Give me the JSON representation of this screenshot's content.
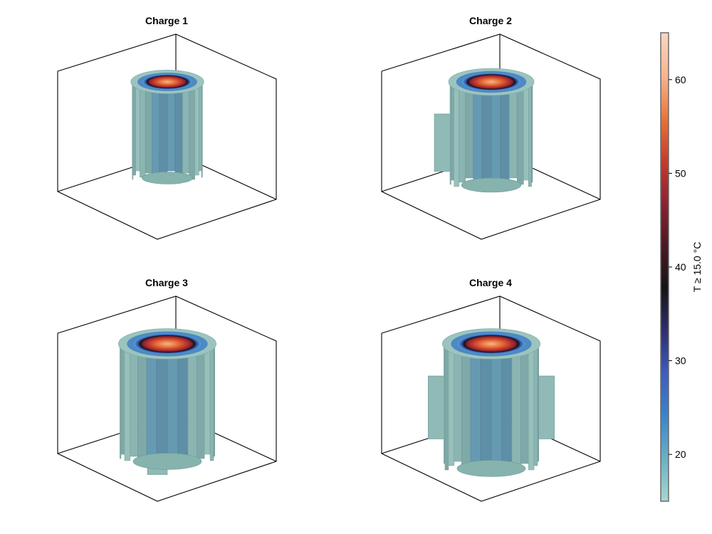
{
  "chart_data": {
    "type": "volume-3d",
    "panels": [
      {
        "title": "Charge 1",
        "column_scale": 0.85,
        "top_y": 115,
        "bottom_y": 252,
        "outcrops": []
      },
      {
        "title": "Charge 2",
        "column_scale": 1.0,
        "top_y": 115,
        "bottom_y": 262,
        "outcrops": [
          [
            "left",
            0.55
          ]
        ]
      },
      {
        "title": "Charge 3",
        "column_scale": 1.15,
        "top_y": 115,
        "bottom_y": 282,
        "outcrops": [
          [
            "front",
            0.62
          ]
        ]
      },
      {
        "title": "Charge 4",
        "column_scale": 1.15,
        "top_y": 115,
        "bottom_y": 292,
        "outcrops": [
          [
            "left",
            0.5
          ],
          [
            "right",
            0.5
          ]
        ]
      }
    ],
    "colorbar": {
      "label": "T ≥ 15.0 °C",
      "range": [
        15,
        65
      ],
      "ticks": [
        20,
        30,
        40,
        50,
        60
      ],
      "colors": [
        "#a9d6cf",
        "#6ab0c4",
        "#3a85c8",
        "#3e5cbf",
        "#2f2e6d",
        "#141414",
        "#4a1a22",
        "#8c2232",
        "#c63b2e",
        "#e8753a",
        "#f6b590",
        "#fbd7c0"
      ]
    }
  }
}
